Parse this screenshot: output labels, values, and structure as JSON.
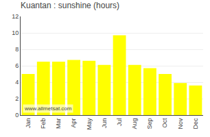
{
  "chart_data": {
    "type": "bar",
    "title": "Kuantan : sunshine (hours)",
    "categories": [
      "Jan",
      "Feb",
      "Mar",
      "Apr",
      "May",
      "Jun",
      "Jul",
      "Aug",
      "Sep",
      "Oct",
      "Nov",
      "Dec"
    ],
    "values": [
      5.0,
      6.5,
      6.5,
      6.7,
      6.6,
      6.1,
      9.7,
      6.1,
      5.7,
      5.0,
      3.9,
      3.6
    ],
    "color": "#FFFF00",
    "ylim": [
      0,
      12
    ],
    "yticks": [
      0,
      2,
      4,
      6,
      8,
      10,
      12
    ],
    "grid": true,
    "annotations": [
      "www.allmetsat.com"
    ]
  }
}
